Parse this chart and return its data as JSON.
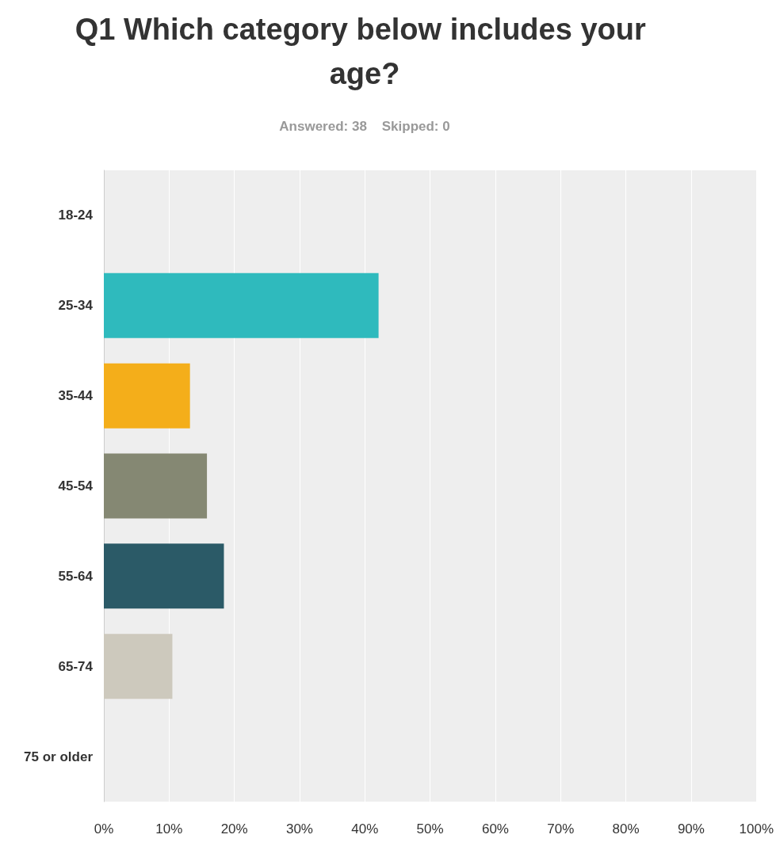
{
  "chart_data": {
    "type": "bar",
    "orientation": "horizontal",
    "title": "Q1 Which category below includes your age?",
    "subtitle": "Answered: 38    Skipped: 0",
    "categories": [
      "18-24",
      "25-34",
      "35-44",
      "45-54",
      "55-64",
      "65-74",
      "75 or older"
    ],
    "values": [
      0,
      42.1,
      13.2,
      15.8,
      18.4,
      10.5,
      0
    ],
    "colors": [
      "#2fbabd",
      "#2fbabd",
      "#f4ae1a",
      "#858873",
      "#2b5a67",
      "#cdc9bd",
      "#2fbabd"
    ],
    "xlim": [
      0,
      100
    ],
    "xticks": [
      {
        "value": 0,
        "label": "0%"
      },
      {
        "value": 10,
        "label": "10%"
      },
      {
        "value": 20,
        "label": "20%"
      },
      {
        "value": 30,
        "label": "30%"
      },
      {
        "value": 40,
        "label": "40%"
      },
      {
        "value": 50,
        "label": "50%"
      },
      {
        "value": 60,
        "label": "60%"
      },
      {
        "value": 70,
        "label": "70%"
      },
      {
        "value": 80,
        "label": "80%"
      },
      {
        "value": 90,
        "label": "90%"
      },
      {
        "value": 100,
        "label": "100%"
      }
    ],
    "grid": "x"
  }
}
